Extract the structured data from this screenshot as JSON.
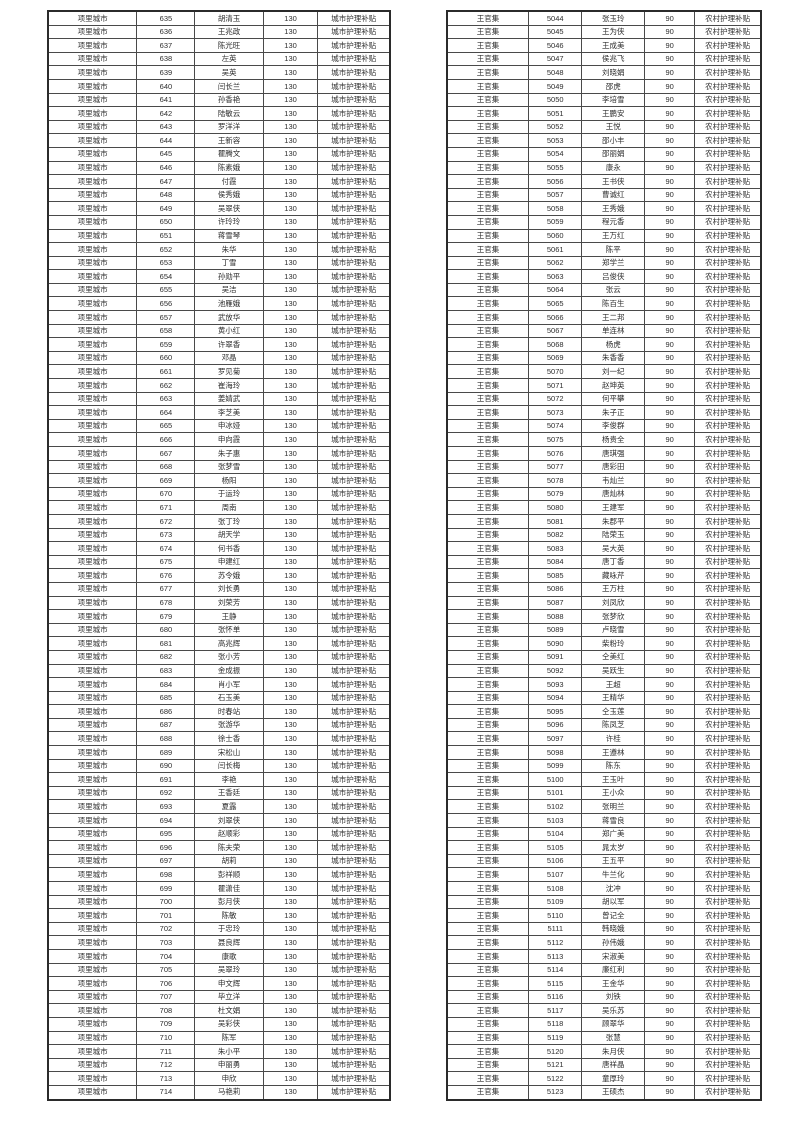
{
  "page": {
    "background": "#ffffff",
    "border_color": "#2b2b2b",
    "text_color": "#2e2e2e"
  },
  "columns": [
    "area",
    "serial",
    "name",
    "amount",
    "subsidy_type"
  ],
  "tables": [
    {
      "container": "urban-subsidy-table",
      "area": "项里城市",
      "amount": "130",
      "subsidy_type": "城市护理补贴",
      "rows": [
        [
          "635",
          "胡清玉"
        ],
        [
          "636",
          "王兆政"
        ],
        [
          "637",
          "陈光旺"
        ],
        [
          "638",
          "左英"
        ],
        [
          "639",
          "吴英"
        ],
        [
          "640",
          "闫长兰"
        ],
        [
          "641",
          "孙香艳"
        ],
        [
          "642",
          "陆敏云"
        ],
        [
          "643",
          "罗洋洋"
        ],
        [
          "644",
          "王新容"
        ],
        [
          "645",
          "瞿腾文"
        ],
        [
          "646",
          "陈素娥"
        ],
        [
          "647",
          "付霞"
        ],
        [
          "648",
          "侯秀娥"
        ],
        [
          "649",
          "吴翠侠"
        ],
        [
          "650",
          "许玲玲"
        ],
        [
          "651",
          "蒋雪琴"
        ],
        [
          "652",
          "朱华"
        ],
        [
          "653",
          "丁雪"
        ],
        [
          "654",
          "孙勋平"
        ],
        [
          "655",
          "吴洁"
        ],
        [
          "656",
          "池雁娥"
        ],
        [
          "657",
          "武放华"
        ],
        [
          "658",
          "黄小红"
        ],
        [
          "659",
          "许翠香"
        ],
        [
          "660",
          "邓晶"
        ],
        [
          "661",
          "罗见菊"
        ],
        [
          "662",
          "崔海玲"
        ],
        [
          "663",
          "姜婧武"
        ],
        [
          "664",
          "李芝美"
        ],
        [
          "665",
          "申冰娅"
        ],
        [
          "666",
          "申向霞"
        ],
        [
          "667",
          "朱子惠"
        ],
        [
          "668",
          "张梦雪"
        ],
        [
          "669",
          "杨阳"
        ],
        [
          "670",
          "于运玲"
        ],
        [
          "671",
          "周南"
        ],
        [
          "672",
          "张丁玲"
        ],
        [
          "673",
          "胡天学"
        ],
        [
          "674",
          "何书香"
        ],
        [
          "675",
          "申建红"
        ],
        [
          "676",
          "苏令娥"
        ],
        [
          "677",
          "刘长勇"
        ],
        [
          "678",
          "刘荣芳"
        ],
        [
          "679",
          "王静"
        ],
        [
          "680",
          "张怀单"
        ],
        [
          "681",
          "高兆辉"
        ],
        [
          "682",
          "张小芳"
        ],
        [
          "683",
          "金成振"
        ],
        [
          "684",
          "肖小军"
        ],
        [
          "685",
          "石玉美"
        ],
        [
          "686",
          "时春站"
        ],
        [
          "687",
          "张游华"
        ],
        [
          "688",
          "徐士香"
        ],
        [
          "689",
          "宋松山"
        ],
        [
          "690",
          "闫长梅"
        ],
        [
          "691",
          "李艳"
        ],
        [
          "692",
          "王香廷"
        ],
        [
          "693",
          "夏露"
        ],
        [
          "694",
          "刘翠侠"
        ],
        [
          "695",
          "赵顺彩"
        ],
        [
          "696",
          "陈夫荣"
        ],
        [
          "697",
          "胡莉"
        ],
        [
          "698",
          "彭祥顺"
        ],
        [
          "699",
          "瞿潇佳"
        ],
        [
          "700",
          "彭月侠"
        ],
        [
          "701",
          "陈敏"
        ],
        [
          "702",
          "于忠玲"
        ],
        [
          "703",
          "聂良辉"
        ],
        [
          "704",
          "康歌"
        ],
        [
          "705",
          "吴翠玲"
        ],
        [
          "706",
          "申文辉"
        ],
        [
          "707",
          "毕立洋"
        ],
        [
          "708",
          "杜文娟"
        ],
        [
          "709",
          "吴彩侠"
        ],
        [
          "710",
          "陈军"
        ],
        [
          "711",
          "朱小平"
        ],
        [
          "712",
          "申丽勇"
        ],
        [
          "713",
          "申欣"
        ],
        [
          "714",
          "马艳莉"
        ]
      ]
    },
    {
      "container": "rural-subsidy-table",
      "area": "王官集",
      "amount": "90",
      "subsidy_type": "农村护理补贴",
      "rows": [
        [
          "5044",
          "张玉玲"
        ],
        [
          "5045",
          "王为侠"
        ],
        [
          "5046",
          "王成美"
        ],
        [
          "5047",
          "侯兆飞"
        ],
        [
          "5048",
          "刘晓娟"
        ],
        [
          "5049",
          "邵虎"
        ],
        [
          "5050",
          "李培雪"
        ],
        [
          "5051",
          "王鹏安"
        ],
        [
          "5052",
          "王悦"
        ],
        [
          "5053",
          "邵小丰"
        ],
        [
          "5054",
          "邵丽娟"
        ],
        [
          "5055",
          "康永"
        ],
        [
          "5056",
          "王书侠"
        ],
        [
          "5057",
          "曹诚红"
        ],
        [
          "5058",
          "王秀娥"
        ],
        [
          "5059",
          "程元香"
        ],
        [
          "5060",
          "王万红"
        ],
        [
          "5061",
          "陈平"
        ],
        [
          "5062",
          "郑学兰"
        ],
        [
          "5063",
          "吕俊侠"
        ],
        [
          "5064",
          "张云"
        ],
        [
          "5065",
          "陈百生"
        ],
        [
          "5066",
          "王二邦"
        ],
        [
          "5067",
          "单连林"
        ],
        [
          "5068",
          "杨虎"
        ],
        [
          "5069",
          "朱香香"
        ],
        [
          "5070",
          "刘一纪"
        ],
        [
          "5071",
          "赵坤英"
        ],
        [
          "5072",
          "何平攀"
        ],
        [
          "5073",
          "朱子正"
        ],
        [
          "5074",
          "李俊群"
        ],
        [
          "5075",
          "杨贵全"
        ],
        [
          "5076",
          "唐琪强"
        ],
        [
          "5077",
          "唐彩田"
        ],
        [
          "5078",
          "韦灿兰"
        ],
        [
          "5079",
          "唐灿林"
        ],
        [
          "5080",
          "王建军"
        ],
        [
          "5081",
          "朱郡平"
        ],
        [
          "5082",
          "陆荣玉"
        ],
        [
          "5083",
          "吴大英"
        ],
        [
          "5084",
          "唐丁香"
        ],
        [
          "5085",
          "藏咏芹"
        ],
        [
          "5086",
          "王万柱"
        ],
        [
          "5087",
          "刘凤欣"
        ],
        [
          "5088",
          "张梦欣"
        ],
        [
          "5089",
          "卢晓雪"
        ],
        [
          "5090",
          "柴粉玲"
        ],
        [
          "5091",
          "仝美红"
        ],
        [
          "5092",
          "吴跃生"
        ],
        [
          "5093",
          "王超"
        ],
        [
          "5094",
          "王精华"
        ],
        [
          "5095",
          "仝玉莲"
        ],
        [
          "5096",
          "陈凤芝"
        ],
        [
          "5097",
          "许桂"
        ],
        [
          "5098",
          "王遵林"
        ],
        [
          "5099",
          "陈东"
        ],
        [
          "5100",
          "王玉叶"
        ],
        [
          "5101",
          "王小众"
        ],
        [
          "5102",
          "张明兰"
        ],
        [
          "5103",
          "蒋雪良"
        ],
        [
          "5104",
          "郑广美"
        ],
        [
          "5105",
          "晁太岁"
        ],
        [
          "5106",
          "王五平"
        ],
        [
          "5107",
          "牛兰化"
        ],
        [
          "5108",
          "沈冲"
        ],
        [
          "5109",
          "胡以军"
        ],
        [
          "5110",
          "曾记全"
        ],
        [
          "5111",
          "韩晓娥"
        ],
        [
          "5112",
          "孙伟娥"
        ],
        [
          "5113",
          "宋淑美"
        ],
        [
          "5114",
          "廉红利"
        ],
        [
          "5115",
          "王金华"
        ],
        [
          "5116",
          "刘铁"
        ],
        [
          "5117",
          "吴乐苏"
        ],
        [
          "5118",
          "顾翠华"
        ],
        [
          "5119",
          "张慧"
        ],
        [
          "5120",
          "朱月侠"
        ],
        [
          "5121",
          "唐祥晶"
        ],
        [
          "5122",
          "童厚玲"
        ],
        [
          "5123",
          "王硕杰"
        ]
      ]
    }
  ]
}
